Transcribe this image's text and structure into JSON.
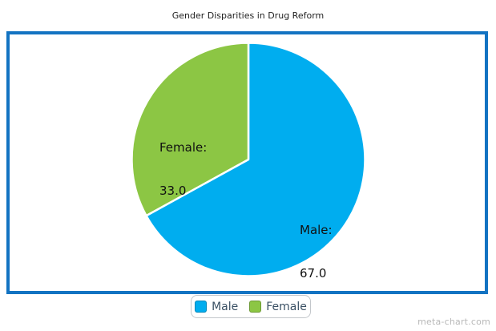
{
  "page": {
    "watermark": "meta-chart.com"
  },
  "chart_data": {
    "type": "pie",
    "title": "Gender Disparities in Drug Reform",
    "categories": [
      "Male",
      "Female"
    ],
    "values": [
      67.0,
      33.0
    ],
    "colors": [
      "#00ADEF",
      "#8CC644"
    ],
    "data_labels": [
      {
        "title": "Male:",
        "value": "67.0"
      },
      {
        "title": "Female:",
        "value": "33.0"
      }
    ],
    "legend": {
      "position": "bottom",
      "labels": [
        "Male",
        "Female"
      ]
    },
    "frame_color": "#1373C2",
    "slice_separator_color": "#ffffff",
    "start_angle_deg": 0,
    "direction": "clockwise"
  }
}
